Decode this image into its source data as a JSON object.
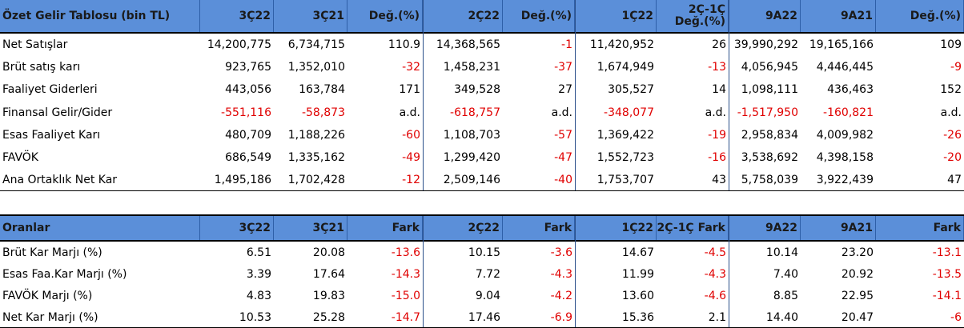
{
  "income": {
    "header": [
      "Özet Gelir Tablosu (bin TL)",
      "3Ç22",
      "3Ç21",
      "Değ.(%)",
      "2Ç22",
      "Değ.(%)",
      "1Ç22",
      "2Ç-1Ç Değ.(%)",
      "9A22",
      "9A21",
      "Değ.(%)"
    ],
    "header_line1_col7": "2Ç-1Ç",
    "header_line2_col7": "Değ.(%)",
    "rows": [
      [
        "Net Satışlar",
        "14,200,775",
        "6,734,715",
        "110.9",
        "14,368,565",
        "-1",
        "11,420,952",
        "26",
        "39,990,292",
        "19,165,166",
        "109"
      ],
      [
        "Brüt satış karı",
        "923,765",
        "1,352,010",
        "-32",
        "1,458,231",
        "-37",
        "1,674,949",
        "-13",
        "4,056,945",
        "4,446,445",
        "-9"
      ],
      [
        "Faaliyet Giderleri",
        "443,056",
        "163,784",
        "171",
        "349,528",
        "27",
        "305,527",
        "14",
        "1,098,111",
        "436,463",
        "152"
      ],
      [
        "Finansal Gelir/Gider",
        "-551,116",
        "-58,873",
        "a.d.",
        "-618,757",
        "a.d.",
        "-348,077",
        "a.d.",
        "-1,517,950",
        "-160,821",
        "a.d."
      ],
      [
        "Esas Faaliyet Karı",
        "480,709",
        "1,188,226",
        "-60",
        "1,108,703",
        "-57",
        "1,369,422",
        "-19",
        "2,958,834",
        "4,009,982",
        "-26"
      ],
      [
        "FAVÖK",
        "686,549",
        "1,335,162",
        "-49",
        "1,299,420",
        "-47",
        "1,552,723",
        "-16",
        "3,538,692",
        "4,398,158",
        "-20"
      ],
      [
        "Ana Ortaklık Net Kar",
        "1,495,186",
        "1,702,428",
        "-12",
        "2,509,146",
        "-40",
        "1,753,707",
        "43",
        "5,758,039",
        "3,922,439",
        "47"
      ]
    ]
  },
  "ratios": {
    "header": [
      "Oranlar",
      "3Ç22",
      "3Ç21",
      "Fark",
      "2Ç22",
      "Fark",
      "1Ç22",
      "2Ç-1Ç Fark",
      "9A22",
      "9A21",
      "Fark"
    ],
    "rows": [
      [
        "Brüt Kar Marjı (%)",
        "6.51",
        "20.08",
        "-13.6",
        "10.15",
        "-3.6",
        "14.67",
        "-4.5",
        "10.14",
        "23.20",
        "-13.1"
      ],
      [
        "Esas Faa.Kar Marjı (%)",
        "3.39",
        "17.64",
        "-14.3",
        "7.72",
        "-4.3",
        "11.99",
        "-4.3",
        "7.40",
        "20.92",
        "-13.5"
      ],
      [
        "FAVÖK Marjı (%)",
        "4.83",
        "19.83",
        "-15.0",
        "9.04",
        "-4.2",
        "13.60",
        "-4.6",
        "8.85",
        "22.95",
        "-14.1"
      ],
      [
        "Net Kar Marjı (%)",
        "10.53",
        "25.28",
        "-14.7",
        "17.46",
        "-6.9",
        "15.36",
        "2.1",
        "14.40",
        "20.47",
        "-6"
      ]
    ]
  },
  "colors": {
    "header_bg": "#5b8fd9",
    "negative": "#e00000"
  }
}
